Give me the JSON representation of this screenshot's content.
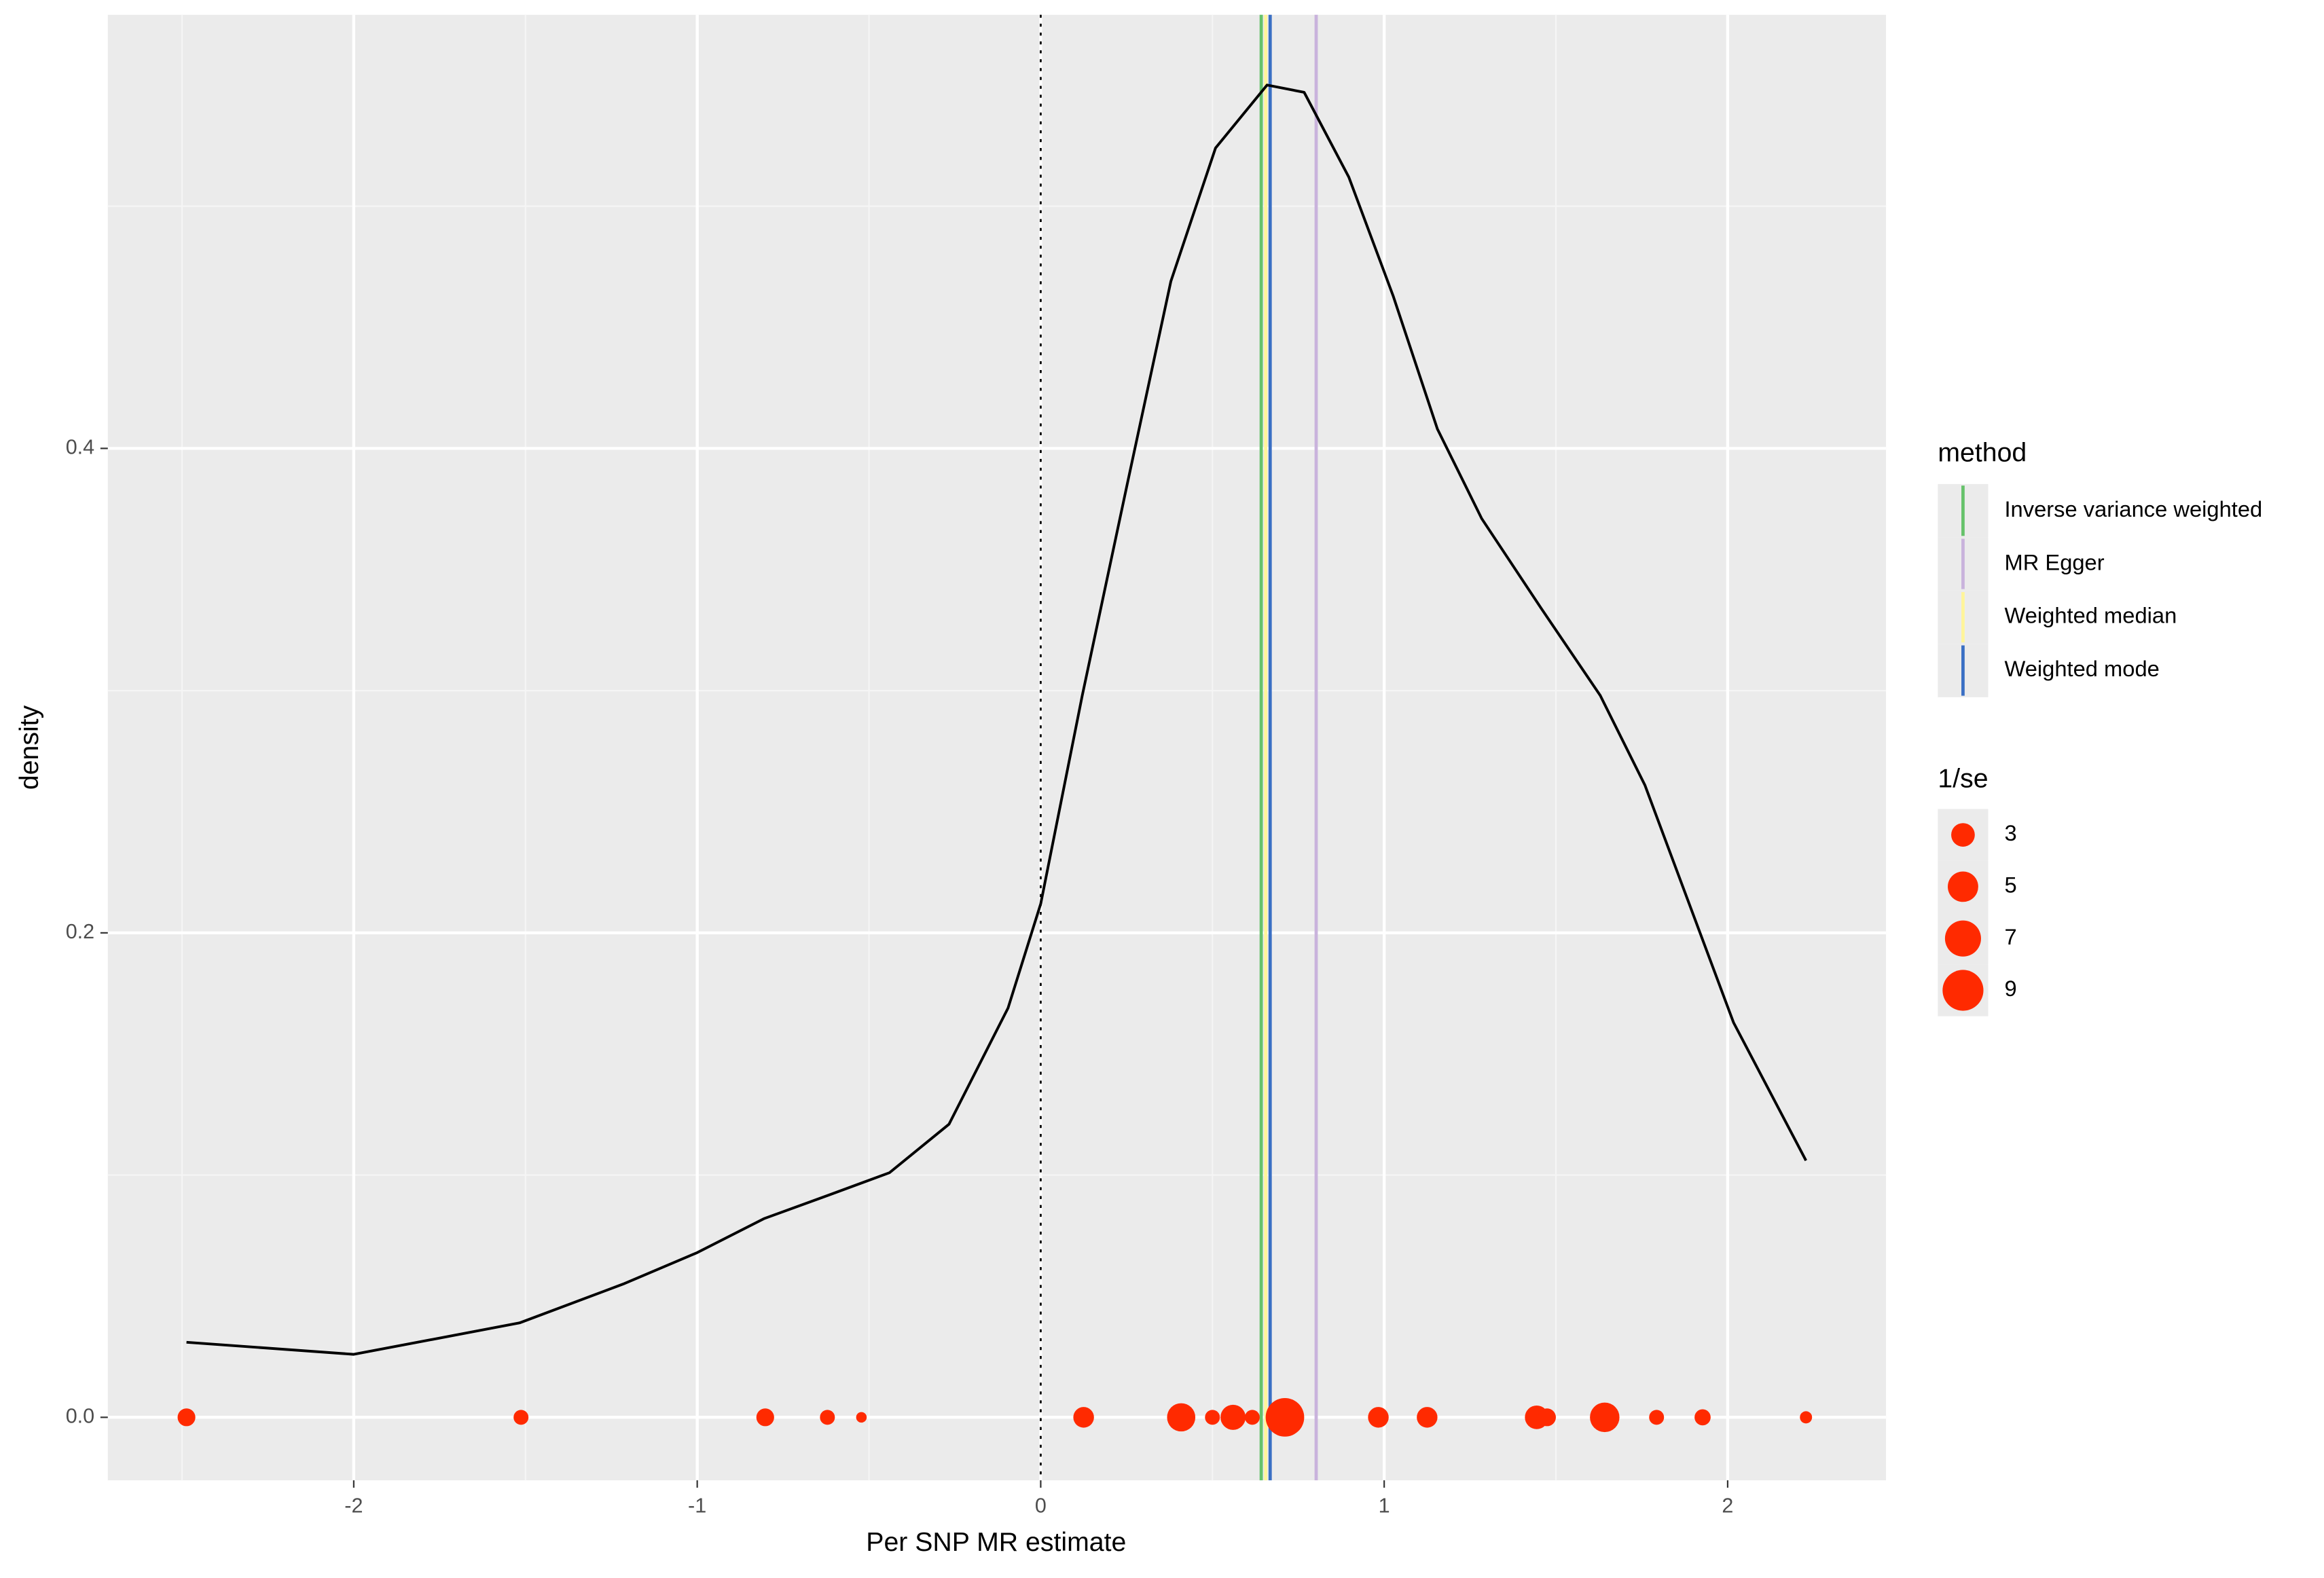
{
  "chart_data": {
    "type": "density",
    "xlabel": "Per SNP MR estimate",
    "ylabel": "density",
    "xlim": [
      -2.716,
      2.461
    ],
    "ylim": [
      -0.026,
      0.579
    ],
    "xticks": [
      -2,
      -1,
      0,
      1,
      2
    ],
    "yticks": [
      {
        "value": 0,
        "label": "0.0"
      },
      0.2,
      0.4
    ],
    "minor_xticks": [
      -2.5,
      -1.5,
      -0.5,
      0.5,
      1.5
    ],
    "minor_yticks": [
      0.1,
      0.3,
      0.5
    ],
    "grid": true,
    "reference_line": 0,
    "curve": {
      "color": "#000000",
      "x": [
        -2.487,
        -2.0,
        -1.517,
        -1.216,
        -1.0,
        -0.806,
        -0.612,
        -0.44,
        -0.267,
        -0.095,
        0,
        0.121,
        0.25,
        0.379,
        0.509,
        0.659,
        0.767,
        0.897,
        1.026,
        1.155,
        1.284,
        1.457,
        1.629,
        1.759,
        1.888,
        2.017,
        2.228
      ],
      "y": [
        0.031,
        0.026,
        0.039,
        0.055,
        0.068,
        0.082,
        0.092,
        0.101,
        0.121,
        0.169,
        0.212,
        0.298,
        0.384,
        0.469,
        0.524,
        0.55,
        0.547,
        0.512,
        0.463,
        0.408,
        0.371,
        0.334,
        0.298,
        0.261,
        0.212,
        0.163,
        0.106
      ]
    },
    "points": {
      "color": "#ff2a00",
      "x": [
        -2.487,
        -1.513,
        -0.802,
        -0.621,
        -0.522,
        0.125,
        0.409,
        0.5,
        0.56,
        0.616,
        0.711,
        0.983,
        1.125,
        1.444,
        1.474,
        1.642,
        1.793,
        1.927,
        2.228
      ],
      "y": [
        0,
        0,
        0,
        0,
        0,
        0,
        0,
        0,
        0,
        0,
        0,
        0,
        0,
        0,
        0,
        0,
        0,
        0,
        0
      ],
      "size": [
        1.7,
        1.2,
        1.7,
        1.2,
        0.6,
        2.3,
        4.3,
        1.2,
        3.4,
        1.2,
        8,
        2.3,
        2.3,
        3,
        1.7,
        4.7,
        1.2,
        1.4,
        0.8
      ]
    },
    "methods": {
      "title": "method",
      "series": [
        {
          "name": "Inverse variance weighted",
          "color": "#66c26b",
          "value": 0.642
        },
        {
          "name": "MR Egger",
          "color": "#c9b3dc",
          "value": 0.802
        },
        {
          "name": "Weighted median",
          "color": "#fff59a",
          "value": 0.655
        },
        {
          "name": "Weighted mode",
          "color": "#3a6fc4",
          "value": 0.668
        }
      ]
    },
    "size_legend": {
      "title": "1/se",
      "values": [
        3,
        5,
        7,
        9
      ]
    }
  }
}
